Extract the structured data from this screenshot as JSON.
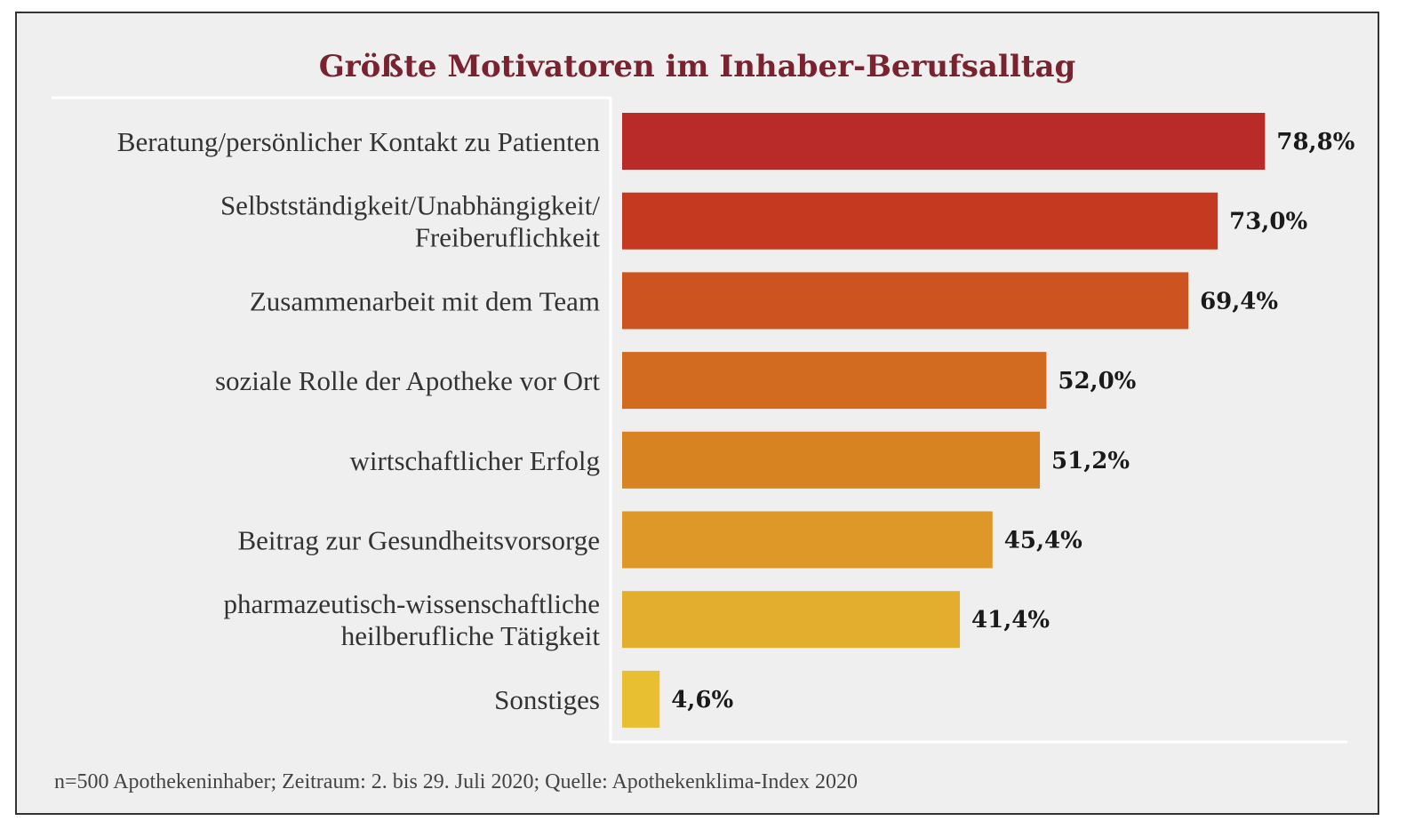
{
  "chart_data": {
    "type": "bar",
    "orientation": "horizontal",
    "title": "Größte Motivatoren im Inhaber-Berufsalltag",
    "categories": [
      [
        "Beratung/persönlicher Kontakt zu Patienten"
      ],
      [
        "Selbstständigkeit/Unabhängigkeit/",
        "Freiberuflichkeit"
      ],
      [
        "Zusammenarbeit mit dem Team"
      ],
      [
        "soziale Rolle der Apotheke vor Ort"
      ],
      [
        "wirtschaftlicher Erfolg"
      ],
      [
        "Beitrag zur Gesundheitsvorsorge"
      ],
      [
        "pharmazeutisch-wissenschaftliche",
        "heilberufliche Tätigkeit"
      ],
      [
        "Sonstiges"
      ]
    ],
    "values": [
      78.8,
      73.0,
      69.4,
      52.0,
      51.2,
      45.4,
      41.4,
      4.6
    ],
    "value_labels": [
      "78,8%",
      "73,0%",
      "69,4%",
      "52,0%",
      "51,2%",
      "45,4%",
      "41,4%",
      "4,6%"
    ],
    "colors": [
      "#b92b28",
      "#c4391f",
      "#cd5320",
      "#d26a20",
      "#d78322",
      "#de9828",
      "#e3ad2d",
      "#e8bf30"
    ],
    "unit": "%",
    "footnote": "n=500 Apothekeninhaber; Zeitraum: 2. bis 29. Juli 2020; Quelle: Apothekenklima-Index 2020"
  }
}
